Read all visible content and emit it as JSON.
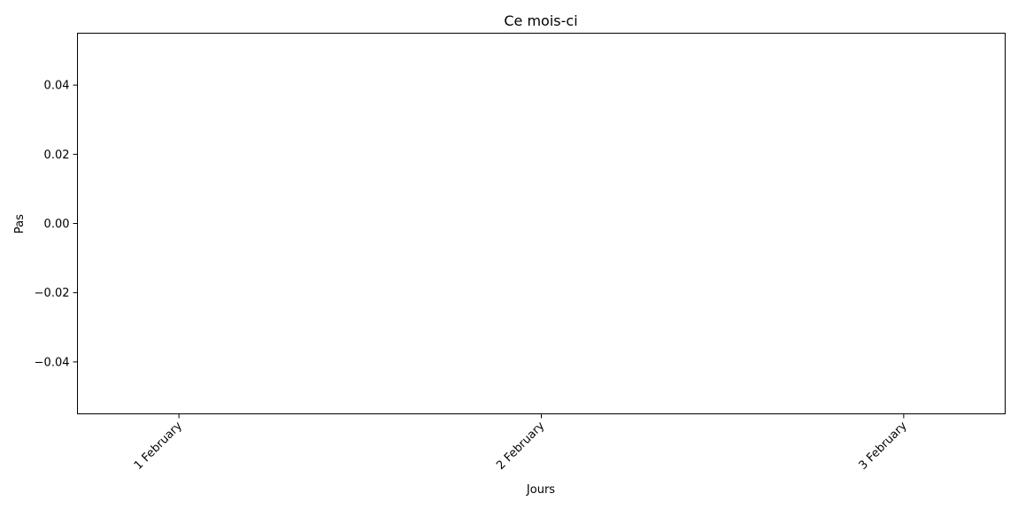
{
  "chart_data": {
    "type": "bar",
    "title": "Ce mois-ci",
    "xlabel": "Jours",
    "ylabel": "Pas",
    "categories": [
      "1 February",
      "2 February",
      "3 February"
    ],
    "values": [
      0,
      0,
      0
    ],
    "ylim": [
      -0.055,
      0.055
    ],
    "yticks": [
      {
        "value": -0.04,
        "label": "−0.04"
      },
      {
        "value": -0.02,
        "label": "−0.02"
      },
      {
        "value": 0.0,
        "label": "0.00"
      },
      {
        "value": 0.02,
        "label": "0.02"
      },
      {
        "value": 0.04,
        "label": "0.04"
      }
    ],
    "xlim": [
      -0.28,
      2.28
    ],
    "grid": false,
    "x_tick_rotation_deg": 45
  }
}
